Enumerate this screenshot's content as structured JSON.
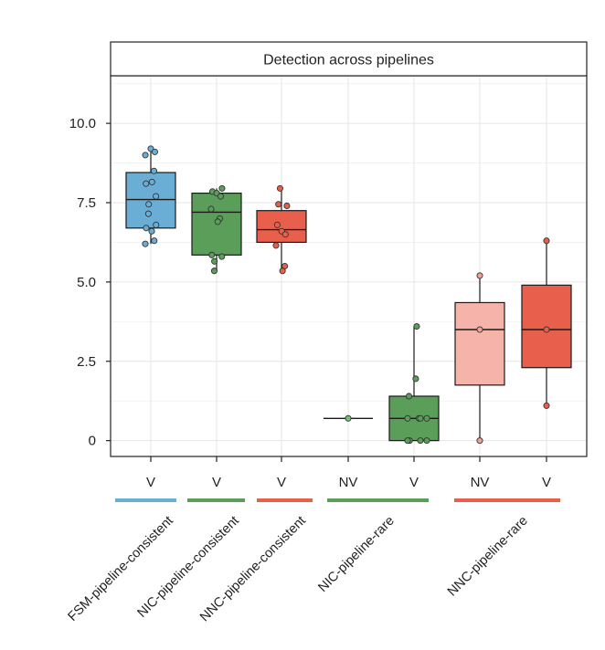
{
  "chart_data": {
    "type": "box",
    "title": "Detection across pipelines",
    "xlabel": "",
    "ylabel": "",
    "ylim": [
      -0.5,
      11.5
    ],
    "yticks": [
      {
        "value": 0,
        "label": "0"
      },
      {
        "value": 2.5,
        "label": "2.5"
      },
      {
        "value": 5,
        "label": "5.0"
      },
      {
        "value": 7.5,
        "label": "7.5"
      },
      {
        "value": 10,
        "label": "10.0"
      }
    ],
    "grid": true,
    "groups": [
      {
        "name": "FSM-pipeline-consistent",
        "color": "#6aaed6"
      },
      {
        "name": "NIC-pipeline-consistent",
        "color": "#5a9e5a"
      },
      {
        "name": "NNC-pipeline-consistent",
        "color": "#e8604c"
      },
      {
        "name": "NIC-pipeline-rare",
        "color": "#5a9e5a"
      },
      {
        "name": "NNC-pipeline-rare",
        "color": "#e8604c"
      }
    ],
    "boxes": [
      {
        "label": "V",
        "group": 0,
        "fill": "#6aaed6",
        "point": "#6aaed6",
        "whisker_low": 6.2,
        "q1": 6.7,
        "median": 7.6,
        "q3": 8.45,
        "whisker_high": 9.2,
        "points": [
          9.2,
          9.1,
          9.0,
          8.5,
          8.15,
          8.1,
          7.7,
          7.45,
          7.15,
          6.8,
          6.7,
          6.6,
          6.3,
          6.2
        ]
      },
      {
        "label": "V",
        "group": 1,
        "fill": "#5a9e5a",
        "point": "#5a9e5a",
        "whisker_low": 5.35,
        "q1": 5.85,
        "median": 7.2,
        "q3": 7.8,
        "whisker_high": 7.95,
        "points": [
          7.95,
          7.85,
          7.8,
          7.7,
          7.3,
          7.0,
          6.9,
          5.85,
          5.8,
          5.65,
          5.35
        ]
      },
      {
        "label": "V",
        "group": 2,
        "fill": "#e8604c",
        "point": "#e8604c",
        "whisker_low": 5.35,
        "q1": 6.25,
        "median": 6.65,
        "q3": 7.25,
        "whisker_high": 7.95,
        "points": [
          7.95,
          7.45,
          7.4,
          6.8,
          6.6,
          6.5,
          6.15,
          5.5,
          5.35
        ]
      },
      {
        "label": "NV",
        "group": 3,
        "fill": "#5a9e5a",
        "point": "#7dbb7d",
        "whisker_low": 0.7,
        "q1": 0.7,
        "median": 0.7,
        "q3": 0.7,
        "whisker_high": 0.7,
        "points": [
          0.7
        ]
      },
      {
        "label": "V",
        "group": 3,
        "fill": "#5a9e5a",
        "point": "#5a9e5a",
        "whisker_low": 0,
        "q1": 0,
        "median": 0.7,
        "q3": 1.4,
        "whisker_high": 3.6,
        "points": [
          3.6,
          1.95,
          1.4,
          0.7,
          0.7,
          0.7,
          0.7,
          0,
          0,
          0,
          0
        ]
      },
      {
        "label": "NV",
        "group": 4,
        "fill": "#f5b3a9",
        "point": "#f0a096",
        "whisker_low": 0,
        "q1": 1.75,
        "median": 3.5,
        "q3": 4.35,
        "whisker_high": 5.2,
        "points": [
          5.2,
          3.5,
          0
        ]
      },
      {
        "label": "V",
        "group": 4,
        "fill": "#e8604c",
        "point": "#e8604c",
        "whisker_low": 1.1,
        "q1": 2.3,
        "median": 3.5,
        "q3": 4.9,
        "whisker_high": 6.3,
        "points": [
          6.3,
          3.5,
          1.1
        ]
      }
    ]
  }
}
